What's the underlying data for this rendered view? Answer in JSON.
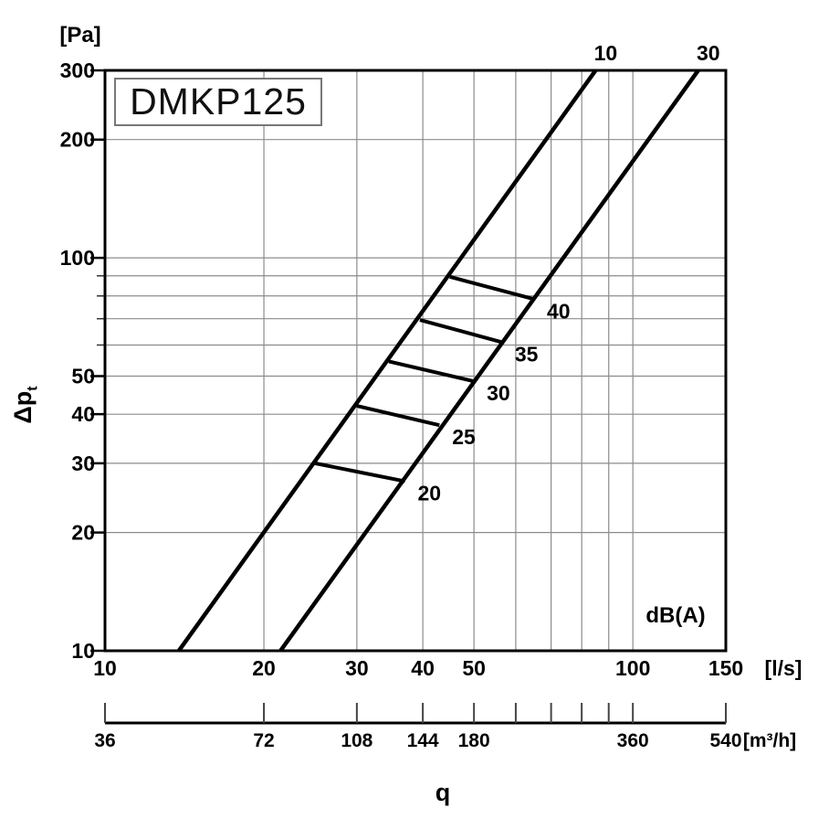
{
  "title": "DMKP125",
  "labels": {
    "y_unit": "[Pa]",
    "y_axis_base": "Δp",
    "y_axis_sub": "t",
    "x_unit_primary": "[l/s]",
    "x_unit_secondary": "[m³/h]",
    "x_axis": "q",
    "noise_unit": "dB(A)"
  },
  "chart_data": {
    "type": "line",
    "title": "DMKP125",
    "x_scale": "log",
    "y_scale": "log",
    "xlim": [
      10,
      150
    ],
    "ylim": [
      10,
      300
    ],
    "xlabel": "q [l/s]",
    "xlabel_secondary": "q [m³/h]",
    "ylabel": "Δpt [Pa]",
    "grid": true,
    "x_ticks_labeled": [
      10,
      20,
      30,
      40,
      50,
      100,
      150
    ],
    "y_ticks_labeled": [
      300,
      200,
      100,
      50,
      40,
      30,
      20,
      10
    ],
    "x_gridlines": [
      20,
      30,
      40,
      50,
      60,
      70,
      80,
      90,
      100
    ],
    "y_gridlines": [
      20,
      30,
      40,
      50,
      60,
      70,
      80,
      90,
      100,
      200
    ],
    "secondary_axis": {
      "unit": "m³/h",
      "conversion_from_ls": 3.6,
      "ticks": [
        36,
        72,
        108,
        144,
        180,
        216,
        252,
        288,
        324,
        360,
        540
      ],
      "ticks_labeled": [
        36,
        72,
        108,
        144,
        180,
        360,
        540
      ]
    },
    "series": [
      {
        "name": "setting-line-10",
        "label": "10",
        "points": [
          [
            13.8,
            10
          ],
          [
            85,
            300
          ]
        ]
      },
      {
        "name": "setting-line-30",
        "label": "30",
        "points": [
          [
            21.5,
            10
          ],
          [
            133,
            300
          ]
        ]
      }
    ],
    "noise_rungs": [
      {
        "label": "20",
        "from": [
          25,
          30
        ],
        "to": [
          37,
          27
        ]
      },
      {
        "label": "25",
        "from": [
          30,
          42
        ],
        "to": [
          43,
          37.5
        ]
      },
      {
        "label": "30",
        "from": [
          34.5,
          54.5
        ],
        "to": [
          50,
          48.5
        ]
      },
      {
        "label": "35",
        "from": [
          39.5,
          69.5
        ],
        "to": [
          56.5,
          61
        ]
      },
      {
        "label": "40",
        "from": [
          45,
          89.5
        ],
        "to": [
          65,
          78.5
        ]
      }
    ],
    "noise_unit": "dB(A)"
  }
}
